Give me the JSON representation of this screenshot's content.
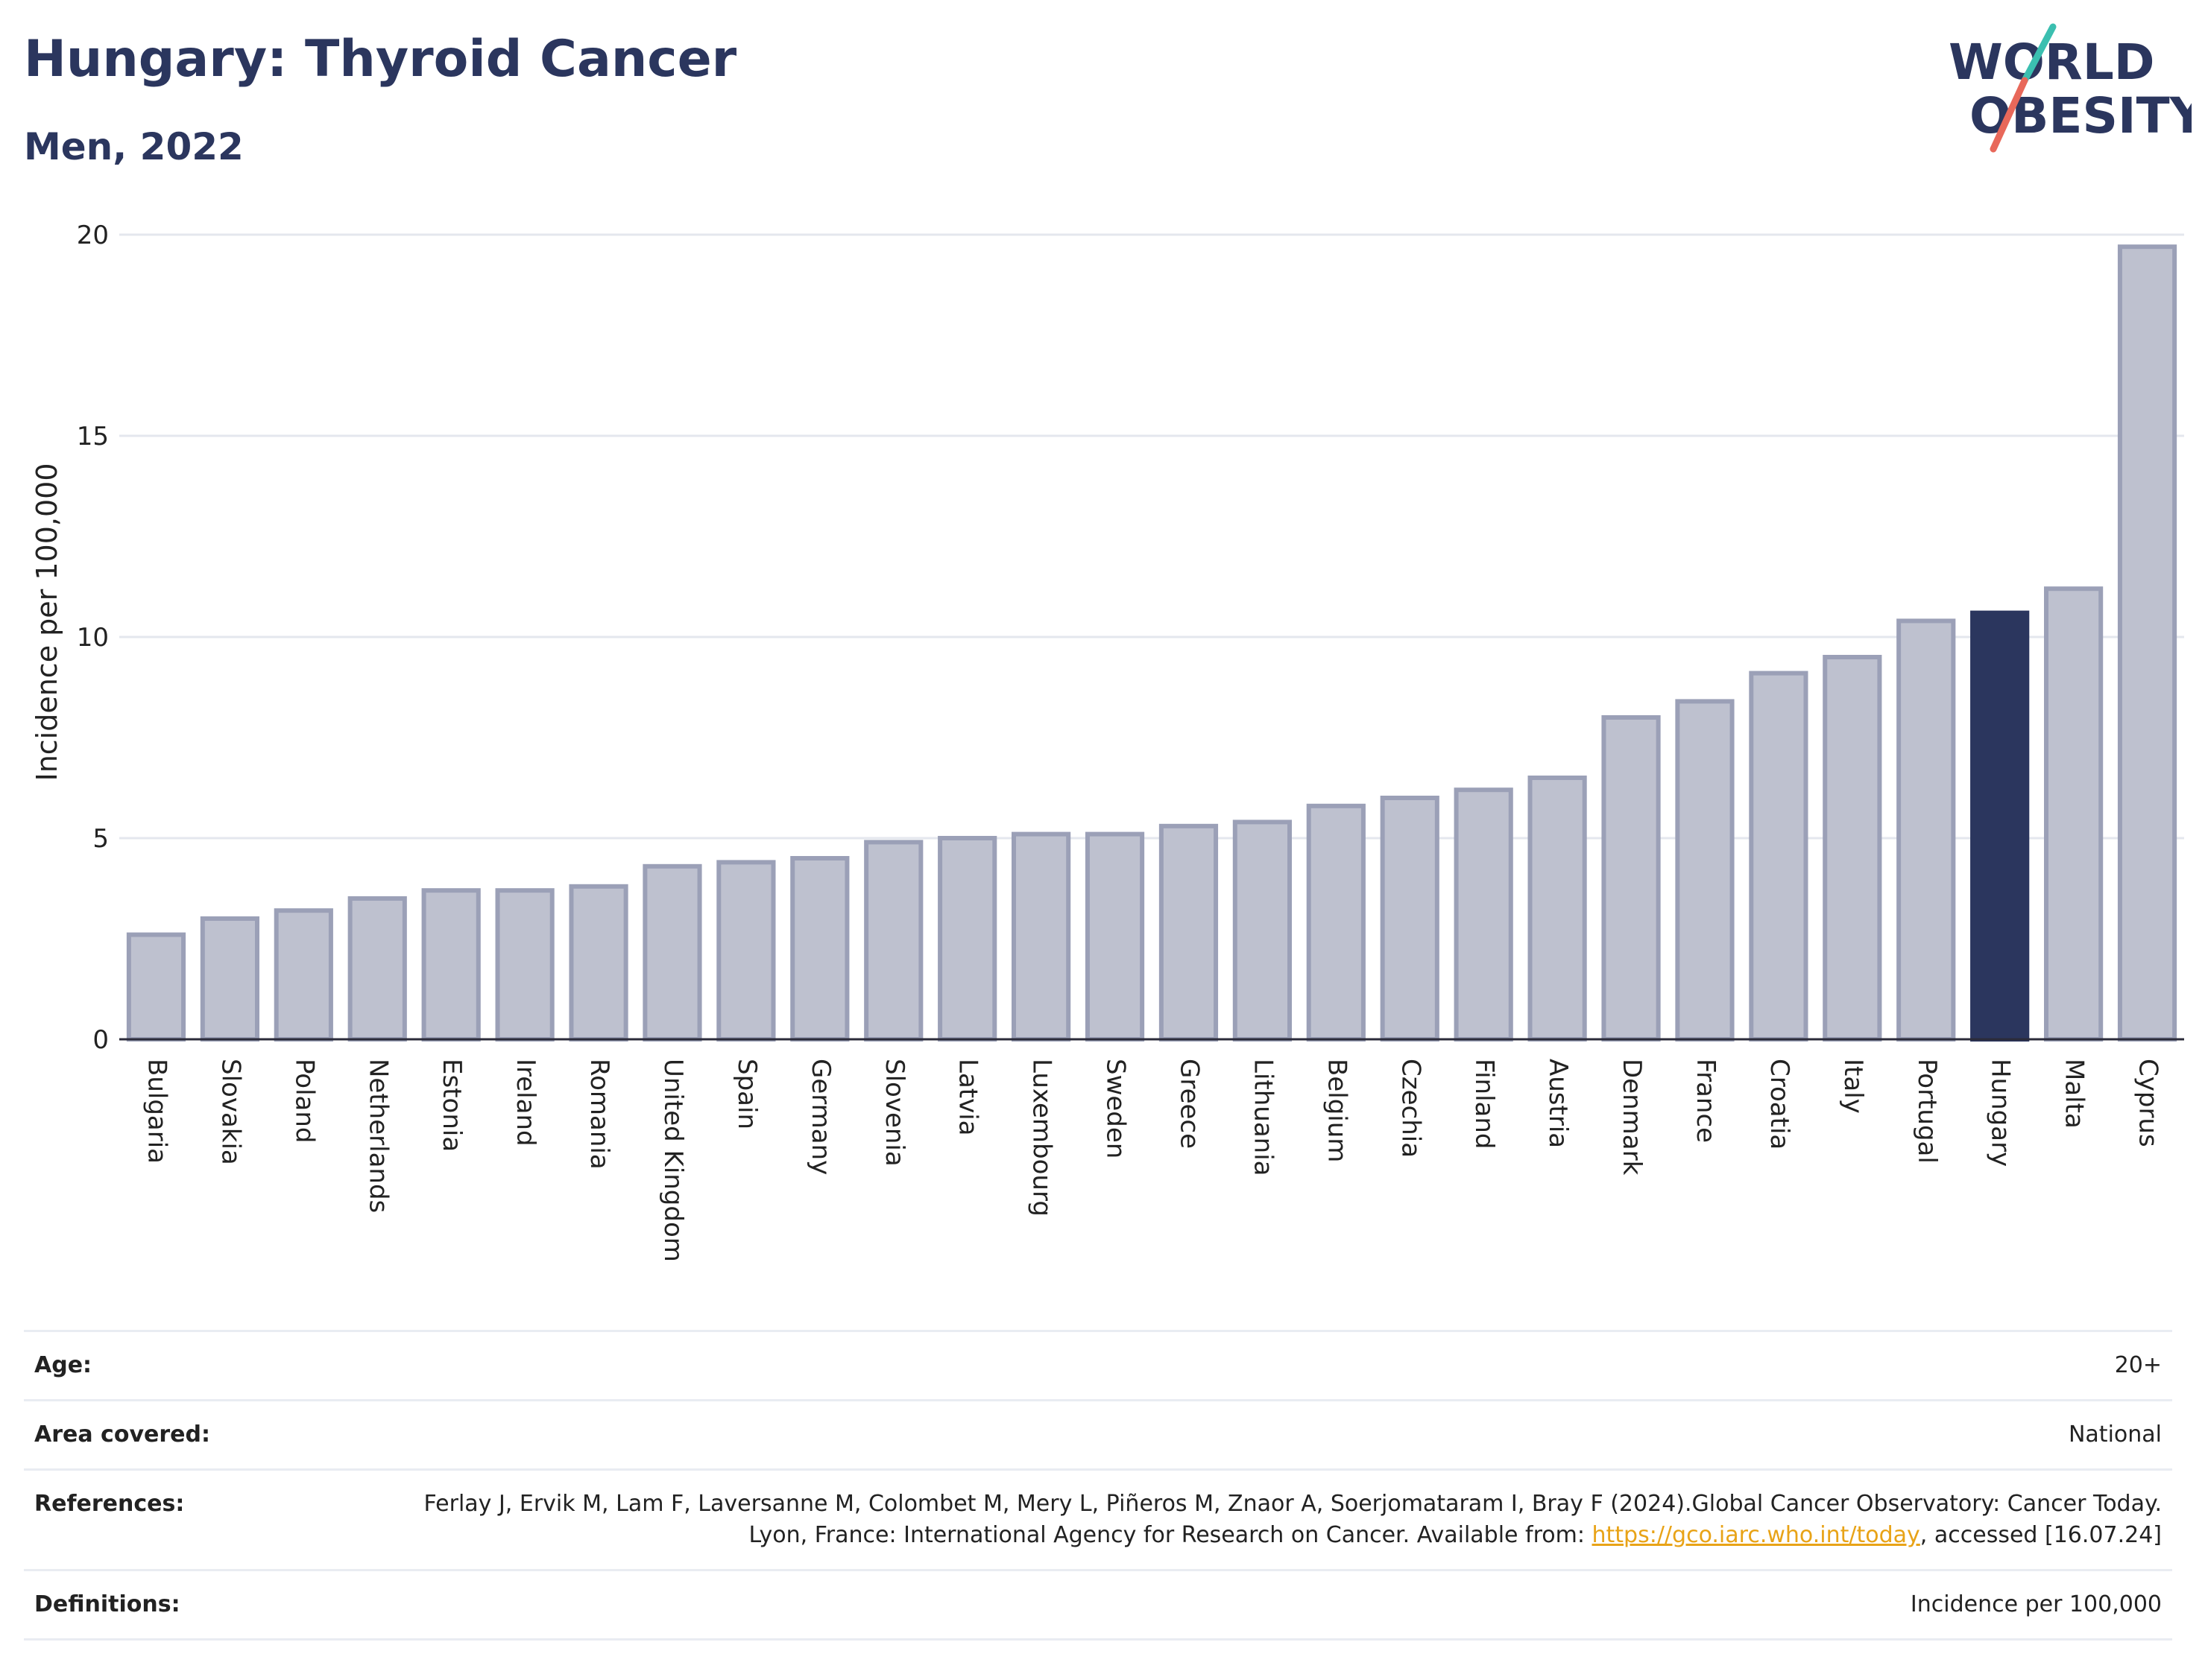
{
  "header": {
    "title": "Hungary: Thyroid Cancer",
    "subtitle": "Men, 2022"
  },
  "logo": {
    "line1": "WORLD",
    "line2": "OBESITY",
    "colors": {
      "text": "#2b365e",
      "slash_top": "#3bbfb0",
      "slash_bottom": "#e8685a"
    }
  },
  "chart_data": {
    "type": "bar",
    "title": "Hungary: Thyroid Cancer",
    "subtitle": "Men, 2022",
    "xlabel": "",
    "ylabel": "Incidence per 100,000",
    "ylim": [
      0,
      20
    ],
    "yticks": [
      0,
      5,
      10,
      15,
      20
    ],
    "grid": true,
    "highlight": "Hungary",
    "colors": {
      "bar": "#bec1cf",
      "bar_edge": "#9ba0b7",
      "highlight": "#2b365e"
    },
    "categories": [
      "Bulgaria",
      "Slovakia",
      "Poland",
      "Netherlands",
      "Estonia",
      "Ireland",
      "Romania",
      "United Kingdom",
      "Spain",
      "Germany",
      "Slovenia",
      "Latvia",
      "Luxembourg",
      "Sweden",
      "Greece",
      "Lithuania",
      "Belgium",
      "Czechia",
      "Finland",
      "Austria",
      "Denmark",
      "France",
      "Croatia",
      "Italy",
      "Portugal",
      "Hungary",
      "Malta",
      "Cyprus"
    ],
    "values": [
      2.6,
      3.0,
      3.2,
      3.5,
      3.7,
      3.7,
      3.8,
      4.3,
      4.4,
      4.5,
      4.9,
      5.0,
      5.1,
      5.1,
      5.3,
      5.4,
      5.8,
      6.0,
      6.2,
      6.5,
      8.0,
      8.4,
      9.1,
      9.5,
      10.4,
      10.6,
      11.2,
      19.7
    ]
  },
  "info": {
    "age_label": "Age:",
    "age_value": "20+",
    "area_label": "Area covered:",
    "area_value": "National",
    "references_label": "References:",
    "references_text_1": "Ferlay J, Ervik M, Lam F, Laversanne M, Colombet M, Mery L, Piñeros M, Znaor A, Soerjomataram I, Bray F (2024).Global Cancer Observatory: Cancer Today. Lyon, France: International Agency for Research on Cancer. Available from: ",
    "references_link": "https://gco.iarc.who.int/today",
    "references_text_2": ", accessed [16.07.24]",
    "definitions_label": "Definitions:",
    "definitions_value": "Incidence per 100,000"
  }
}
